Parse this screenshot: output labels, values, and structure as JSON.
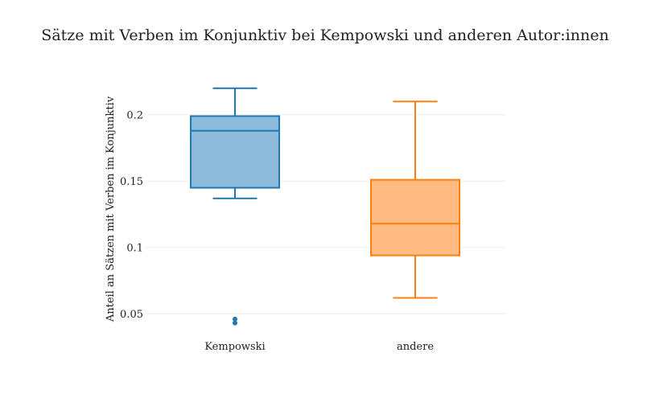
{
  "chart_data": {
    "type": "box",
    "title": "Sätze mit Verben im Konjunktiv bei Kempowski und anderen Autor:innen",
    "xlabel": "",
    "ylabel": "Anteil an Sätzen mit Verben im Konjunktiv",
    "ylim": [
      0.035,
      0.232
    ],
    "yticks": [
      0.05,
      0.1,
      0.15,
      0.2
    ],
    "ytick_labels": [
      "0.05",
      "0.1",
      "0.15",
      "0.2"
    ],
    "grid": true,
    "legend": "none",
    "categories": [
      "Kempowski",
      "andere"
    ],
    "series": [
      {
        "category": "Kempowski",
        "whisker_low": 0.137,
        "q1": 0.145,
        "median": 0.188,
        "q3": 0.199,
        "whisker_high": 0.22,
        "outliers": [
          0.046,
          0.043
        ],
        "line_color": "#1f77b4",
        "fill_color": "#8ebbdb"
      },
      {
        "category": "andere",
        "whisker_low": 0.062,
        "q1": 0.094,
        "median": 0.118,
        "q3": 0.151,
        "whisker_high": 0.21,
        "outliers": [],
        "line_color": "#ff7f0e",
        "fill_color": "#ffbb82"
      }
    ]
  }
}
